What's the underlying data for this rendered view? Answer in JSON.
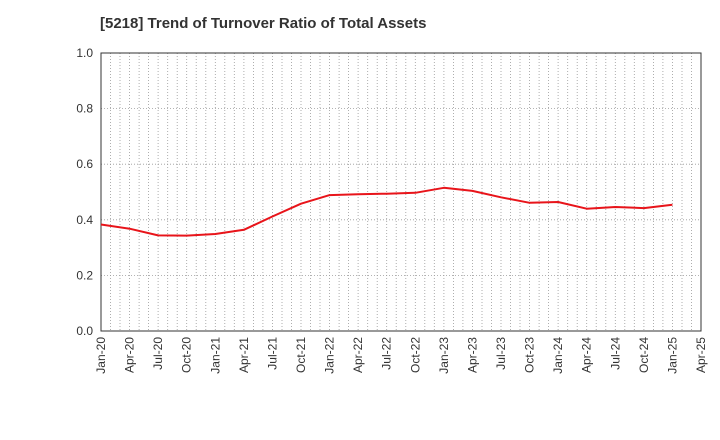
{
  "chart_data": {
    "type": "line",
    "title": "[5218]  Trend of Turnover Ratio of Total Assets",
    "xlabel": "",
    "ylabel": "",
    "ylim": [
      0,
      1.0
    ],
    "y_ticks": [
      "0.0",
      "0.2",
      "0.4",
      "0.6",
      "0.8",
      "1.0"
    ],
    "x_ticks": [
      "Jan-20",
      "Apr-20",
      "Jul-20",
      "Oct-20",
      "Jan-21",
      "Apr-21",
      "Jul-21",
      "Oct-21",
      "Jan-22",
      "Apr-22",
      "Jul-22",
      "Oct-22",
      "Jan-23",
      "Apr-23",
      "Jul-23",
      "Oct-23",
      "Jan-24",
      "Apr-24",
      "Jul-24",
      "Oct-24",
      "Jan-25",
      "Apr-25"
    ],
    "grid": true,
    "line_color": "#e8141a",
    "series": [
      {
        "x": [
          "Jan-20",
          "Apr-20",
          "Jul-20",
          "Oct-20",
          "Jan-21",
          "Apr-21",
          "Jul-21",
          "Oct-21",
          "Jan-22",
          "Apr-22",
          "Jul-22",
          "Oct-22",
          "Jan-23",
          "Apr-23",
          "Jul-23",
          "Oct-23",
          "Jan-24",
          "Apr-24",
          "Jul-24",
          "Oct-24",
          "Jan-25"
        ],
        "values": [
          0.383,
          0.368,
          0.344,
          0.343,
          0.349,
          0.364,
          0.412,
          0.458,
          0.489,
          0.492,
          0.494,
          0.497,
          0.515,
          0.504,
          0.481,
          0.461,
          0.464,
          0.44,
          0.446,
          0.442,
          0.454
        ]
      }
    ]
  }
}
